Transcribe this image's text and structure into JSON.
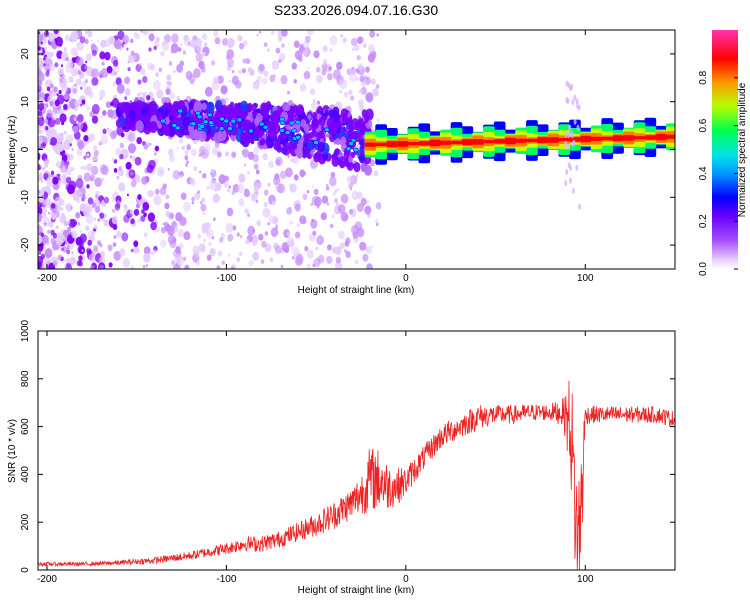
{
  "figure_title": "S233.2026.094.07.16.G30",
  "chart_data": [
    {
      "type": "heatmap",
      "title": "S233.2026.094.07.16.G30",
      "xlabel": "Height of straight line (km)",
      "ylabel": "Frequency (Hz)",
      "xlim": [
        -205,
        150
      ],
      "ylim": [
        -25,
        25
      ],
      "x_ticks": [
        -200,
        -100,
        0,
        100
      ],
      "y_ticks": [
        -20,
        -10,
        0,
        10,
        20
      ],
      "grid": false,
      "colorbar": {
        "label": "Normalized spectral amplitude",
        "ticks": [
          0.0,
          0.2,
          0.4,
          0.6,
          0.8
        ],
        "range": [
          0,
          1
        ],
        "colors": [
          "#ffffff",
          "#d9b3ff",
          "#8a00ff",
          "#0000ff",
          "#00c8ff",
          "#00ff66",
          "#c8ff00",
          "#ff8000",
          "#ff0000",
          "#ff33cc"
        ]
      },
      "ridge": [
        {
          "x": -150,
          "y": 7.0
        },
        {
          "x": -130,
          "y": 6.5
        },
        {
          "x": -110,
          "y": 6.0
        },
        {
          "x": -90,
          "y": 5.5
        },
        {
          "x": -75,
          "y": 5.0
        },
        {
          "x": -60,
          "y": 4.0
        },
        {
          "x": -45,
          "y": 3.0
        },
        {
          "x": -30,
          "y": 2.0
        },
        {
          "x": -20,
          "y": 1.5
        },
        {
          "x": 0,
          "y": 1.0
        },
        {
          "x": 30,
          "y": 1.2
        },
        {
          "x": 60,
          "y": 1.5
        },
        {
          "x": 90,
          "y": 2.0
        },
        {
          "x": 120,
          "y": 2.5
        },
        {
          "x": 150,
          "y": 2.6
        }
      ],
      "bright_band": {
        "x_start": -23,
        "x_end": 150,
        "y_center_start": 1.0,
        "y_center_end": 2.7
      },
      "anomaly_x": 92
    },
    {
      "type": "line",
      "xlabel": "Height of straight line (km)",
      "ylabel": "SNR (10 * v/v)",
      "xlim": [
        -205,
        150
      ],
      "ylim": [
        0,
        1000
      ],
      "x_ticks": [
        -200,
        -100,
        0,
        100
      ],
      "y_ticks": [
        0,
        200,
        400,
        600,
        800,
        1000
      ],
      "grid": false,
      "series": [
        {
          "name": "SNR",
          "color": "#ee2222",
          "x": [
            -205,
            -180,
            -160,
            -140,
            -120,
            -100,
            -90,
            -80,
            -70,
            -60,
            -50,
            -40,
            -30,
            -25,
            -20,
            -15,
            -10,
            -5,
            0,
            10,
            20,
            30,
            40,
            50,
            60,
            70,
            80,
            88,
            92,
            94,
            96,
            98,
            100,
            110,
            120,
            130,
            140,
            150
          ],
          "values": [
            25,
            25,
            30,
            40,
            60,
            90,
            110,
            110,
            130,
            160,
            190,
            230,
            280,
            320,
            380,
            380,
            350,
            350,
            370,
            470,
            560,
            600,
            640,
            650,
            650,
            660,
            660,
            660,
            600,
            300,
            100,
            300,
            650,
            650,
            650,
            650,
            650,
            630
          ],
          "noise": [
            8,
            8,
            10,
            14,
            18,
            25,
            30,
            35,
            35,
            40,
            50,
            60,
            70,
            90,
            140,
            130,
            100,
            80,
            60,
            50,
            50,
            50,
            55,
            40,
            40,
            35,
            35,
            60,
            250,
            300,
            300,
            300,
            40,
            35,
            35,
            35,
            35,
            35
          ]
        }
      ]
    }
  ]
}
